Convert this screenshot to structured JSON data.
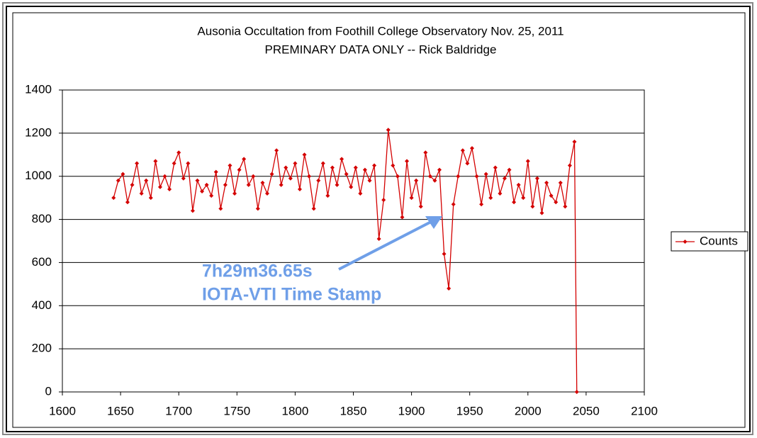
{
  "chart_data": {
    "type": "line",
    "title": "Ausonia Occultation from Foothill College Observatory  Nov. 25, 2011",
    "subtitle": "PREMINARY DATA ONLY  --  Rick Baldridge",
    "annotations": [
      "7h29m36.65s",
      "IOTA-VTI Time Stamp"
    ],
    "x": [
      1644,
      1648,
      1652,
      1656,
      1660,
      1664,
      1668,
      1672,
      1676,
      1680,
      1684,
      1688,
      1692,
      1696,
      1700,
      1704,
      1708,
      1712,
      1716,
      1720,
      1724,
      1728,
      1732,
      1736,
      1740,
      1744,
      1748,
      1752,
      1756,
      1760,
      1764,
      1768,
      1772,
      1776,
      1780,
      1784,
      1788,
      1792,
      1796,
      1800,
      1804,
      1808,
      1812,
      1816,
      1820,
      1824,
      1828,
      1832,
      1836,
      1840,
      1844,
      1848,
      1852,
      1856,
      1860,
      1864,
      1868,
      1872,
      1876,
      1880,
      1884,
      1888,
      1892,
      1896,
      1900,
      1904,
      1908,
      1912,
      1916,
      1920,
      1924,
      1928,
      1932,
      1936,
      1940,
      1944,
      1948,
      1952,
      1956,
      1960,
      1964,
      1968,
      1972,
      1976,
      1980,
      1984,
      1988,
      1992,
      1996,
      2000,
      2004,
      2008,
      2012,
      2016,
      2020,
      2024,
      2028,
      2032,
      2036,
      2040,
      2042
    ],
    "series": [
      {
        "name": "Counts",
        "color": "#d40000",
        "values": [
          900,
          980,
          1010,
          880,
          960,
          1060,
          920,
          980,
          900,
          1070,
          950,
          1000,
          940,
          1060,
          1110,
          990,
          1060,
          840,
          980,
          930,
          960,
          910,
          1020,
          850,
          960,
          1050,
          920,
          1030,
          1080,
          960,
          1000,
          850,
          970,
          920,
          1010,
          1120,
          960,
          1040,
          990,
          1060,
          940,
          1100,
          1000,
          850,
          980,
          1060,
          910,
          1040,
          960,
          1080,
          1010,
          950,
          1040,
          920,
          1030,
          980,
          1050,
          710,
          890,
          1215,
          1050,
          1000,
          810,
          1070,
          900,
          980,
          860,
          1110,
          1000,
          980,
          1030,
          640,
          480,
          870,
          1000,
          1120,
          1060,
          1130,
          1000,
          870,
          1010,
          900,
          1040,
          920,
          990,
          1030,
          880,
          960,
          900,
          1070,
          860,
          990,
          830,
          970,
          910,
          880,
          970,
          860,
          1050,
          1160,
          0
        ]
      }
    ],
    "xlim": [
      1600,
      2100
    ],
    "xticks": [
      1600,
      1650,
      1700,
      1750,
      1800,
      1850,
      1900,
      1950,
      2000,
      2050,
      2100
    ],
    "ylim": [
      0,
      1400
    ],
    "yticks": [
      0,
      200,
      400,
      600,
      800,
      1000,
      1200,
      1400
    ],
    "grid": true,
    "legend": "right"
  }
}
